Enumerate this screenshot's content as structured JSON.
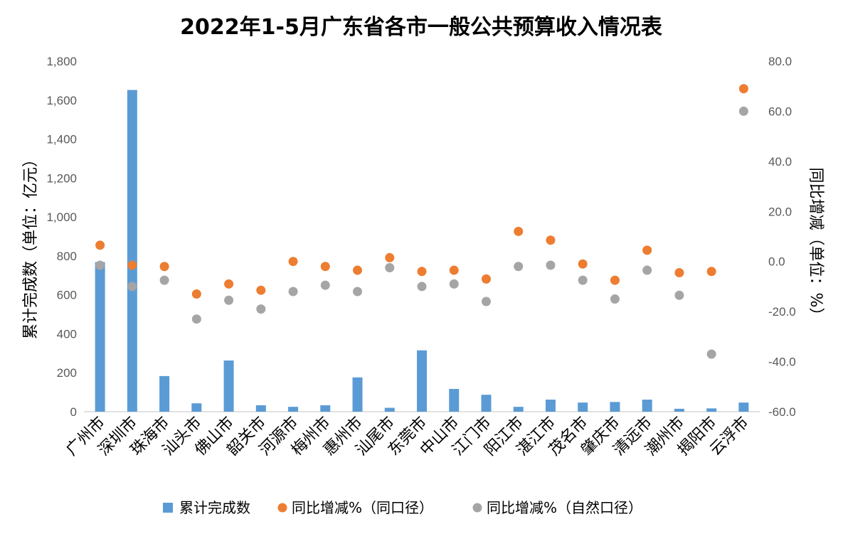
{
  "chart_data": {
    "type": "bar",
    "title": "2022年1-5月广东省各市一般公共预算收入情况表",
    "ylabel": "累计完成数（单位：亿元）",
    "y2label": "同比增减（单位：%）",
    "ylim": [
      0,
      1800
    ],
    "y2lim": [
      -60,
      80
    ],
    "yticks": [
      "0",
      "200",
      "400",
      "600",
      "800",
      "1,000",
      "1,200",
      "1,400",
      "1,600",
      "1,800"
    ],
    "y2ticks": [
      "-60.0",
      "-40.0",
      "-20.0",
      "0.0",
      "20.0",
      "40.0",
      "60.0",
      "80.0"
    ],
    "categories": [
      "广州市",
      "深圳市",
      "珠海市",
      "汕头市",
      "佛山市",
      "韶关市",
      "河源市",
      "梅州市",
      "惠州市",
      "汕尾市",
      "东莞市",
      "中山市",
      "江门市",
      "阳江市",
      "湛江市",
      "茂名市",
      "肇庆市",
      "清远市",
      "潮州市",
      "揭阳市",
      "云浮市"
    ],
    "series": [
      {
        "name": "累计完成数",
        "kind": "bar",
        "axis": "left",
        "color": "#5B9BD5",
        "values": [
          768,
          1652,
          183,
          43,
          263,
          33,
          25,
          33,
          176,
          20,
          315,
          117,
          87,
          25,
          62,
          47,
          50,
          62,
          15,
          17,
          47
        ]
      },
      {
        "name": "同比增减%（同口径）",
        "kind": "scatter",
        "axis": "right",
        "color": "#ED7D31",
        "values": [
          6.5,
          -1.5,
          -2.0,
          -13.0,
          -9.0,
          -11.5,
          0.0,
          -2.0,
          -3.5,
          1.5,
          -4.0,
          -3.5,
          -7.0,
          12.0,
          8.5,
          -1.0,
          -7.5,
          4.5,
          -4.5,
          -4.0,
          69.0
        ]
      },
      {
        "name": "同比增减%（自然口径）",
        "kind": "scatter",
        "axis": "right",
        "color": "#A5A5A5",
        "values": [
          -1.5,
          -10.0,
          -7.5,
          -23.0,
          -15.5,
          -19.0,
          -12.0,
          -9.5,
          -12.0,
          -2.5,
          -10.0,
          -9.0,
          -16.0,
          -2.0,
          -1.5,
          -7.5,
          -15.0,
          -3.5,
          -13.5,
          -37.0,
          60.0
        ]
      }
    ],
    "legend_position": "bottom",
    "grid": false
  }
}
